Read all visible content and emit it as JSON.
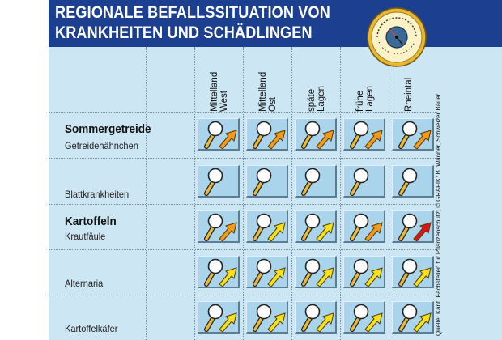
{
  "header": {
    "title_line1": "REGIONALE BEFALLSSITUATION VON",
    "title_line2": "KRANKHEITEN UND SCHÄDLINGEN",
    "background": "#1d3f8f",
    "barometer_icon": "barometer-icon"
  },
  "columns": [
    {
      "line1": "Mittelland",
      "line2": "West"
    },
    {
      "line1": "Mittelland",
      "line2": "Ost"
    },
    {
      "line1": "späte",
      "line2": "Lagen"
    },
    {
      "line1": "frühe",
      "line2": "Lagen"
    },
    {
      "line1": "Rheintal",
      "line2": ""
    }
  ],
  "groups": [
    {
      "title": "Sommergetreide"
    },
    {
      "title": "Kartoffeln"
    }
  ],
  "rows": [
    {
      "label": "Getreidehähnchen",
      "cells": [
        "orange",
        "orange",
        "orange",
        "orange",
        "orange"
      ]
    },
    {
      "label": "Blattkrankheiten",
      "cells": [
        "none",
        "none",
        "none",
        "none",
        "none"
      ]
    },
    {
      "label": "Krautfäule",
      "cells": [
        "orange",
        "yellow",
        "yellow",
        "orange",
        "red"
      ]
    },
    {
      "label": "Alternaria",
      "cells": [
        "yellow",
        "yellow",
        "yellow",
        "yellow",
        "yellow"
      ]
    },
    {
      "label": "Kartoffelkäfer",
      "cells": [
        "yellow",
        "yellow",
        "yellow",
        "yellow",
        "yellow"
      ]
    }
  ],
  "credit": "Quelle: Kant. Fachstellen für Pflanzenschutz; © GRAFIK: B. Wanner, Schweizer Bauer",
  "colors": {
    "panel": "#cde6f3",
    "cell": "#a9d4ec",
    "arrow_orange": "#f29a1a",
    "arrow_yellow": "#f4e21b",
    "arrow_red": "#d8171c",
    "magnifier_handle": "#e8b93a"
  }
}
